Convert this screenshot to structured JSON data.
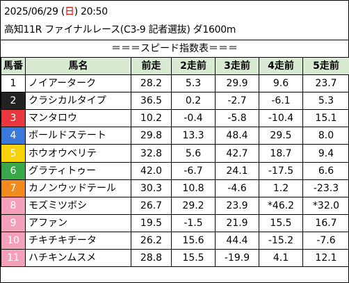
{
  "race": {
    "date": "2025/06/29 ",
    "weekday_open": "(",
    "weekday": "日",
    "weekday_close": ")",
    "time": " 20:50",
    "title": "高知11R ファイナルレース(C3-9 記者選抜) ダ1600m"
  },
  "banner": "＝＝＝スピード指数表＝＝＝",
  "columns": [
    "馬番",
    "馬名",
    "前走",
    "2走前",
    "3走前",
    "4走前",
    "5走前"
  ],
  "rows": [
    {
      "no": "1",
      "name": "ノイアーターク",
      "v": [
        "28.2",
        "5.3",
        "29.9",
        "9.6",
        "23.7"
      ],
      "bg": "#ffffff",
      "fg": "#000000"
    },
    {
      "no": "2",
      "name": "クラシカルタイプ",
      "v": [
        "36.5",
        "0.2",
        "-2.7",
        "-6.1",
        "5.3"
      ],
      "bg": "#222222",
      "fg": "#ffffff"
    },
    {
      "no": "3",
      "name": "マンタロウ",
      "v": [
        "10.2",
        "-0.4",
        "-5.8",
        "-10.4",
        "15.1"
      ],
      "bg": "#e8383d",
      "fg": "#ffffff"
    },
    {
      "no": "4",
      "name": "ボールドステート",
      "v": [
        "29.8",
        "13.3",
        "48.4",
        "29.5",
        "8.0"
      ],
      "bg": "#3a79d9",
      "fg": "#ffffff"
    },
    {
      "no": "5",
      "name": "ホウオウベリテ",
      "v": [
        "32.8",
        "5.6",
        "42.7",
        "18.7",
        "9.4"
      ],
      "bg": "#f5d20a",
      "fg": "#ffffff"
    },
    {
      "no": "6",
      "name": "グラティトゥー",
      "v": [
        "42.0",
        "-6.7",
        "24.1",
        "-17.5",
        "6.6"
      ],
      "bg": "#3aa84a",
      "fg": "#ffffff"
    },
    {
      "no": "7",
      "name": "カノンウッドテール",
      "v": [
        "30.3",
        "10.8",
        "-4.6",
        "1.2",
        "-23.3"
      ],
      "bg": "#f08a1c",
      "fg": "#ffffff"
    },
    {
      "no": "8",
      "name": "モズミツボシ",
      "v": [
        "26.7",
        "29.2",
        "23.9",
        "*46.2",
        "*32.0"
      ],
      "bg": "#f4a0b8",
      "fg": "#ffffff"
    },
    {
      "no": "9",
      "name": "アファン",
      "v": [
        "19.5",
        "-1.5",
        "21.9",
        "15.5",
        "16.7"
      ],
      "bg": "#f4a0b8",
      "fg": "#ffffff"
    },
    {
      "no": "10",
      "name": "チキチキチータ",
      "v": [
        "26.2",
        "15.6",
        "44.4",
        "-15.2",
        "-7.6"
      ],
      "bg": "#f4a0b8",
      "fg": "#ffffff"
    },
    {
      "no": "11",
      "name": "ハチキンムスメ",
      "v": [
        "28.8",
        "15.5",
        "-19.9",
        "4.1",
        "12.1"
      ],
      "bg": "#f4a0b8",
      "fg": "#ffffff"
    }
  ]
}
